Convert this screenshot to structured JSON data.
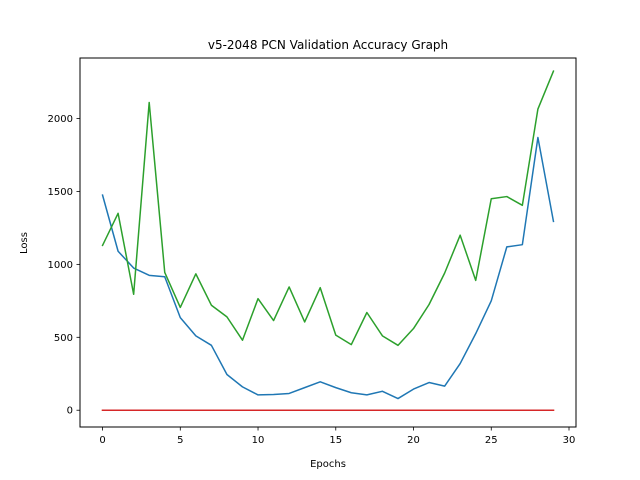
{
  "chart_data": {
    "type": "line",
    "title": "v5-2048 PCN Validation Accuracy Graph",
    "xlabel": "Epochs",
    "ylabel": "Loss",
    "xlim": [
      -1.45,
      30.45
    ],
    "ylim": [
      -115,
      2415
    ],
    "x_ticks": [
      0,
      5,
      10,
      15,
      20,
      25,
      30
    ],
    "y_ticks": [
      0,
      500,
      1000,
      1500,
      2000
    ],
    "grid": false,
    "legend": "none",
    "x": [
      0,
      1,
      2,
      3,
      4,
      5,
      6,
      7,
      8,
      9,
      10,
      11,
      12,
      13,
      14,
      15,
      16,
      17,
      18,
      19,
      20,
      21,
      22,
      23,
      24,
      25,
      26,
      27,
      28,
      29
    ],
    "series": [
      {
        "color": "#1f77b4",
        "values": [
          1475,
          1090,
          975,
          925,
          915,
          635,
          510,
          445,
          245,
          160,
          105,
          108,
          115,
          155,
          195,
          155,
          120,
          105,
          130,
          80,
          145,
          190,
          165,
          320,
          525,
          750,
          1120,
          1135,
          1870,
          1295
        ]
      },
      {
        "color": "#ff7f0e",
        "values": [
          0,
          0,
          0,
          0,
          0,
          0,
          0,
          0,
          0,
          0,
          0,
          0,
          0,
          0,
          0,
          0,
          0,
          0,
          0,
          0,
          0,
          0,
          0,
          0,
          0,
          0,
          0,
          0,
          0,
          0
        ]
      },
      {
        "color": "#2ca02c",
        "values": [
          1130,
          1350,
          795,
          2110,
          945,
          705,
          935,
          720,
          640,
          480,
          765,
          615,
          845,
          605,
          840,
          515,
          450,
          670,
          510,
          445,
          560,
          725,
          940,
          1200,
          890,
          1450,
          1465,
          1405,
          2065,
          2325
        ]
      },
      {
        "color": "#d62728",
        "values": [
          0,
          0,
          0,
          0,
          0,
          0,
          0,
          0,
          0,
          0,
          0,
          0,
          0,
          0,
          0,
          0,
          0,
          0,
          0,
          0,
          0,
          0,
          0,
          0,
          0,
          0,
          0,
          0,
          0,
          0
        ]
      }
    ]
  }
}
